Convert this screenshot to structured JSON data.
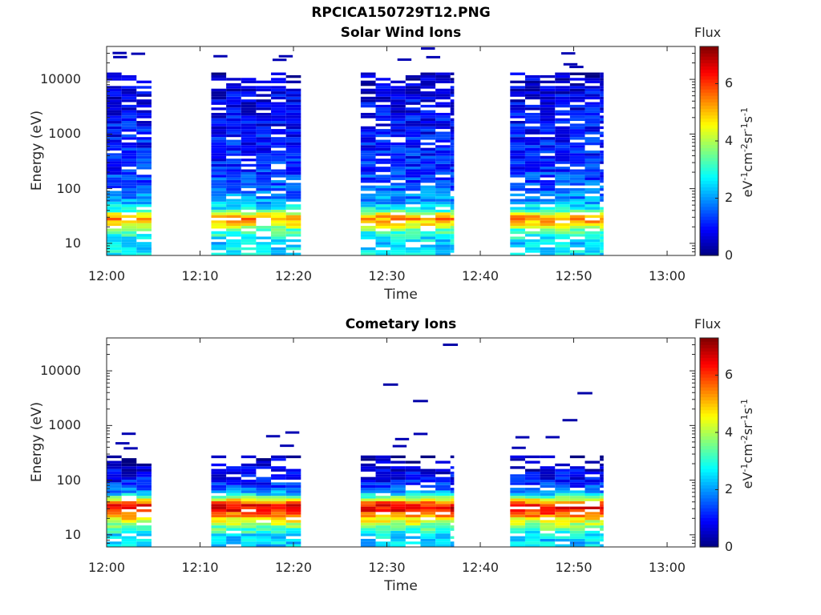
{
  "figure_title": "RPCICA150729T12.PNG",
  "chart_data": [
    {
      "type": "heatmap",
      "title": "Solar Wind Ions",
      "xlabel": "Time",
      "ylabel": "Energy (eV)",
      "x_ticks": [
        "12:00",
        "12:10",
        "12:20",
        "12:30",
        "12:40",
        "12:50",
        "13:00"
      ],
      "y_ticks": [
        "10",
        "100",
        "1000",
        "10000"
      ],
      "y_scale": "log",
      "ylim": [
        6,
        40000
      ],
      "xlim_minutes": [
        0,
        63
      ],
      "colorbar": {
        "title": "Flux",
        "label": "eV-1cm-2sr-1s-1",
        "ticks": [
          "0",
          "2",
          "4",
          "6"
        ],
        "range": [
          0,
          7.3
        ],
        "colormap": "jet"
      },
      "active_intervals_minutes": [
        [
          0,
          4.8
        ],
        [
          11.2,
          20.8
        ],
        [
          27.2,
          37.2
        ],
        [
          43.2,
          53.2
        ]
      ],
      "profile": {
        "description_energy_eV": [
          8,
          10,
          13,
          17,
          22,
          27,
          33,
          40,
          50,
          60,
          75,
          100,
          150,
          250,
          500,
          1000,
          2000,
          5000,
          10000,
          13000
        ],
        "flux_levels": [
          2.6,
          2.4,
          2.8,
          3.2,
          4.6,
          5.4,
          4.8,
          3.0,
          2.4,
          2.0,
          1.8,
          1.6,
          1.4,
          1.2,
          1.1,
          1.0,
          0.9,
          0.8,
          0.6,
          0.4
        ]
      }
    },
    {
      "type": "heatmap",
      "title": "Cometary Ions",
      "xlabel": "Time",
      "ylabel": "Energy (eV)",
      "x_ticks": [
        "12:00",
        "12:10",
        "12:20",
        "12:30",
        "12:40",
        "12:50",
        "13:00"
      ],
      "y_ticks": [
        "10",
        "100",
        "1000",
        "10000"
      ],
      "y_scale": "log",
      "ylim": [
        6,
        40000
      ],
      "xlim_minutes": [
        0,
        63
      ],
      "colorbar": {
        "title": "Flux",
        "label": "eV-1cm-2sr-1s-1",
        "ticks": [
          "0",
          "2",
          "4",
          "6"
        ],
        "range": [
          0,
          7.3
        ],
        "colormap": "jet"
      },
      "active_intervals_minutes": [
        [
          0,
          4.8
        ],
        [
          11.2,
          20.8
        ],
        [
          27.2,
          37.2
        ],
        [
          43.2,
          53.2
        ]
      ],
      "isolated_points": [
        {
          "time_min": 29.6,
          "energy_eV": 5600
        },
        {
          "time_min": 32.8,
          "energy_eV": 2800
        },
        {
          "time_min": 36.0,
          "energy_eV": 30000
        },
        {
          "time_min": 48.8,
          "energy_eV": 1250
        },
        {
          "time_min": 50.4,
          "energy_eV": 3900
        }
      ],
      "profile": {
        "description_energy_eV": [
          8,
          10,
          13,
          17,
          22,
          27,
          33,
          40,
          50,
          60,
          75,
          100,
          130,
          170,
          220,
          280
        ],
        "flux_levels": [
          2.4,
          2.6,
          3.4,
          4.2,
          5.2,
          6.2,
          6.6,
          5.4,
          3.2,
          2.0,
          1.4,
          1.0,
          0.8,
          0.6,
          0.5,
          0.4
        ]
      }
    }
  ],
  "colors": {
    "axis": "#262626",
    "background": "#ffffff"
  }
}
